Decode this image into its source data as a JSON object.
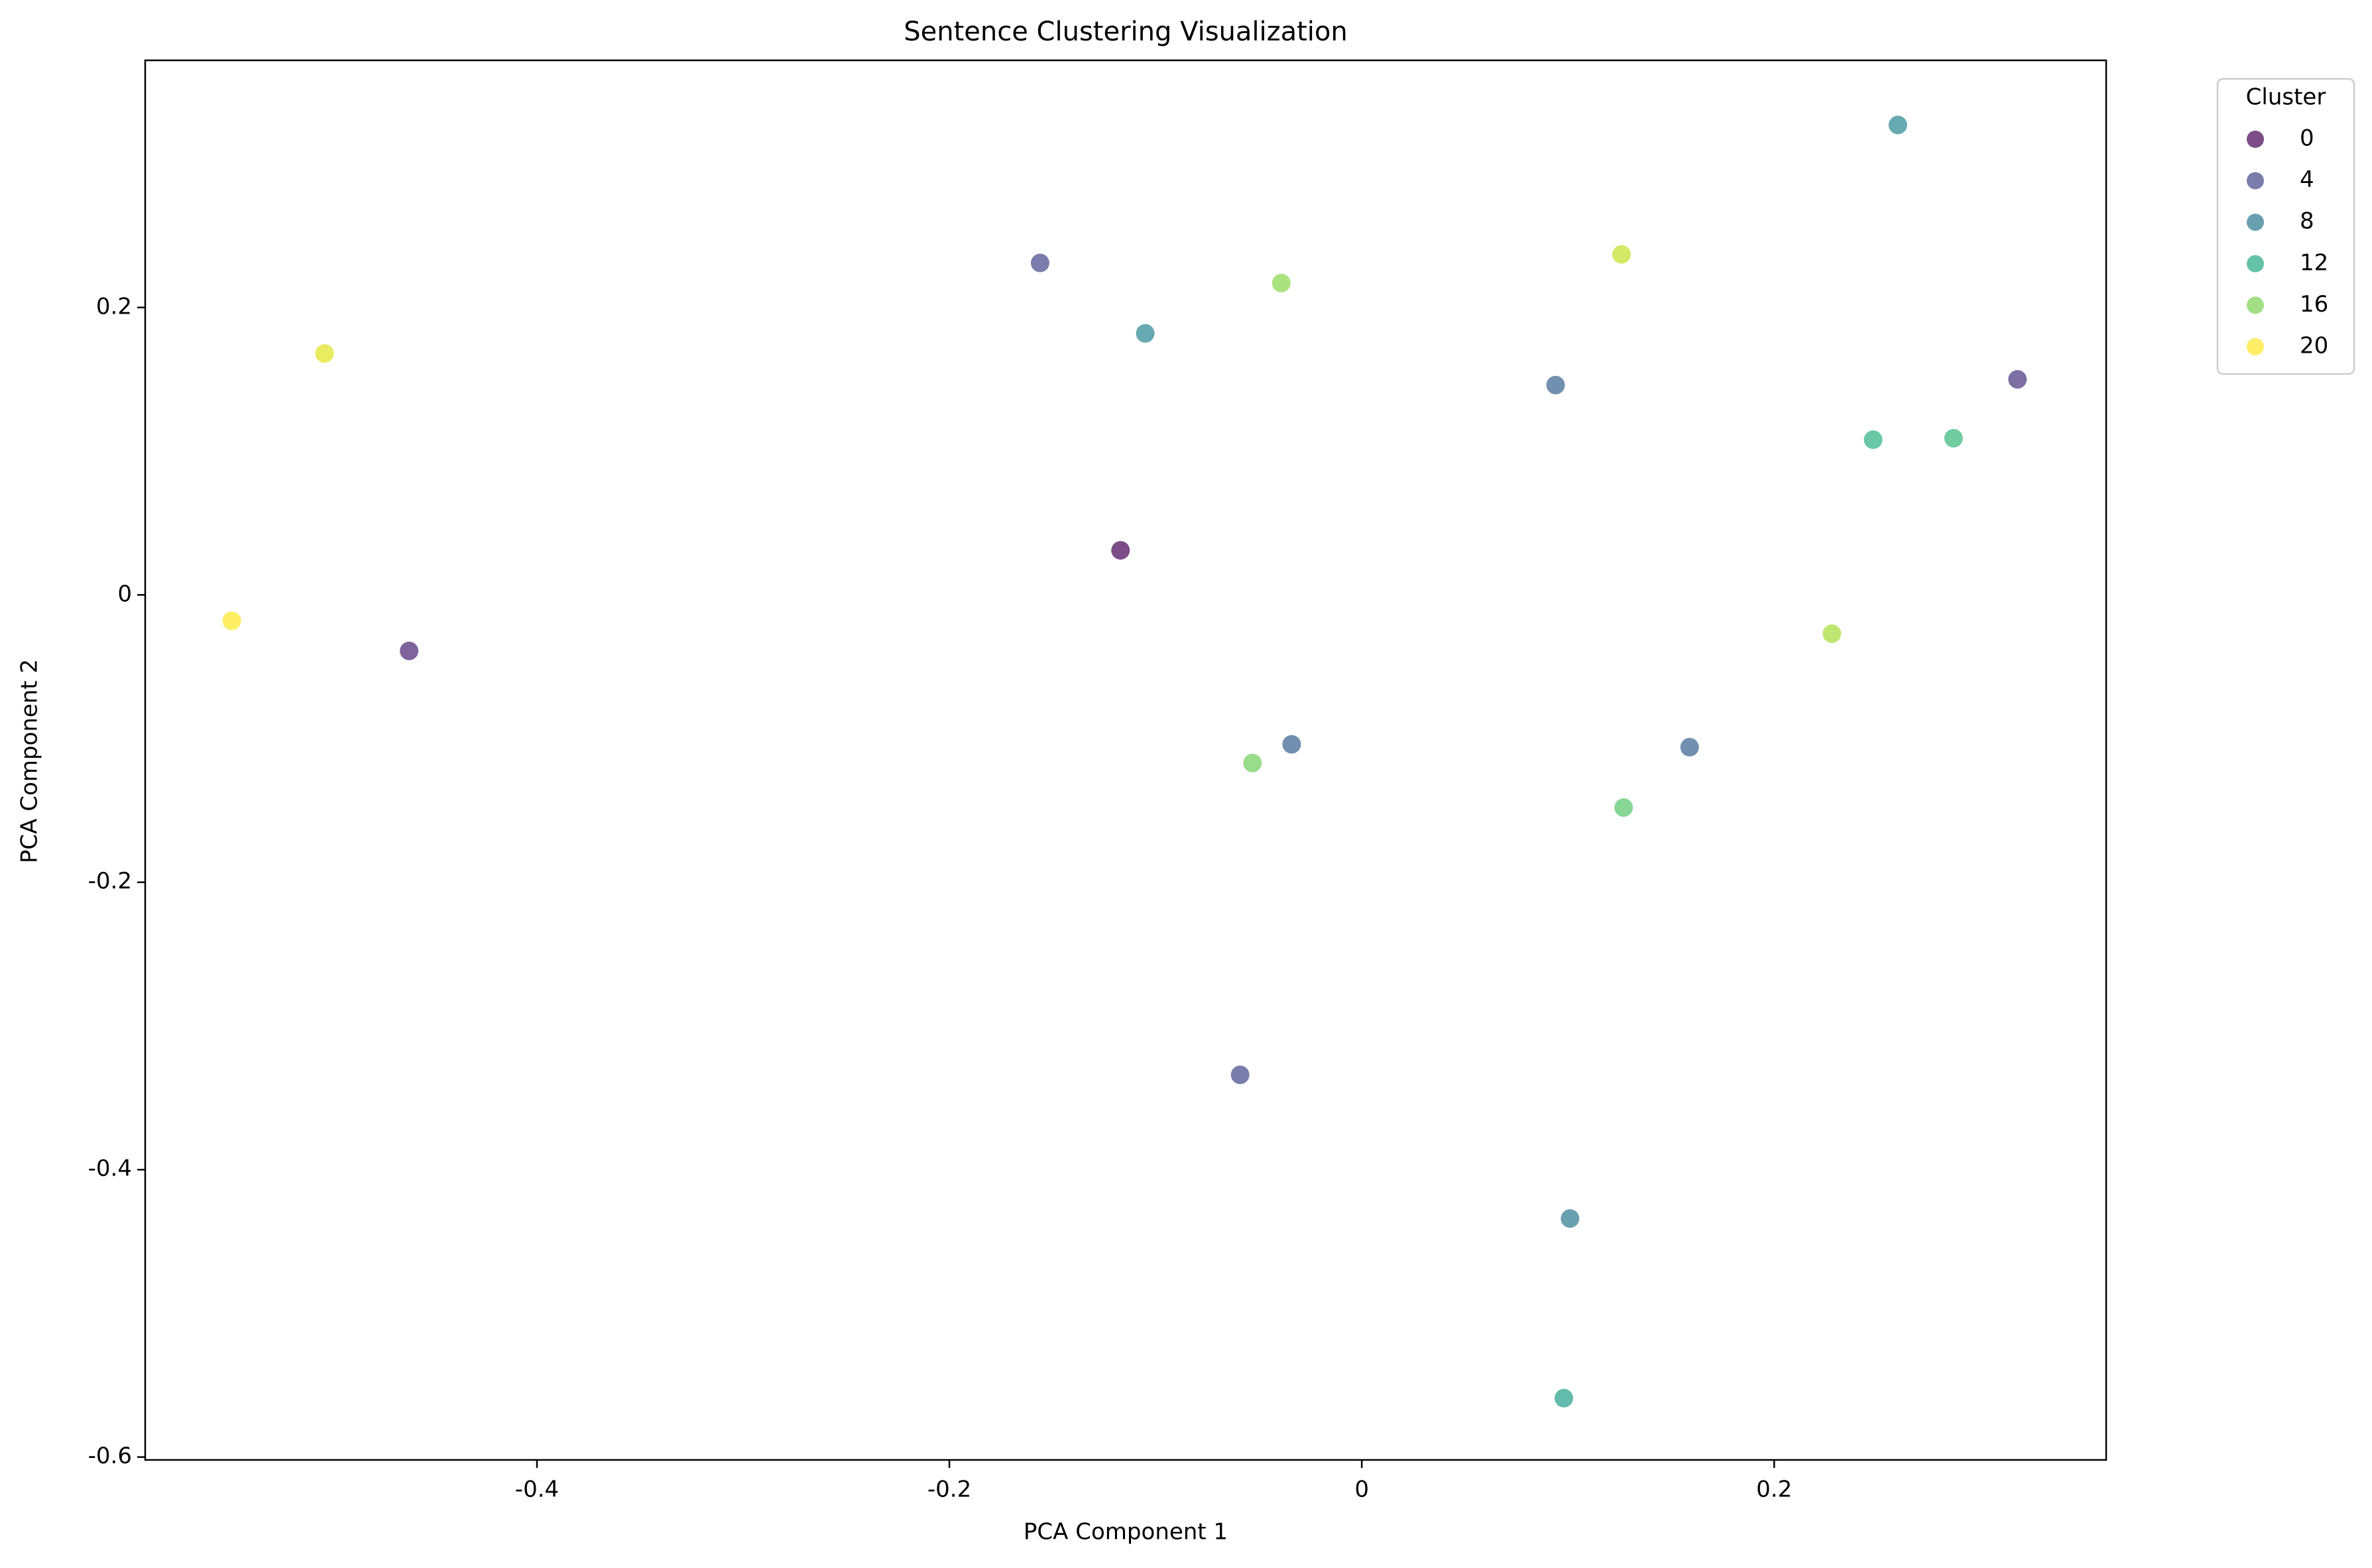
{
  "chart_data": {
    "type": "scatter",
    "title": "Sentence Clustering Visualization",
    "x_label": "PCA Component 1",
    "y_label": "PCA Component 2",
    "xlim": [
      -0.59,
      0.361
    ],
    "ylim": [
      -0.602,
      0.372
    ],
    "xticks": [
      -0.4,
      -0.2,
      0.0,
      0.2
    ],
    "yticks": [
      -0.6,
      -0.4,
      -0.2,
      0.0,
      0.2
    ],
    "grid": false,
    "alpha": 0.7,
    "x": [
      -0.548,
      -0.503,
      -0.462,
      -0.156,
      -0.117,
      -0.105,
      -0.039,
      -0.053,
      -0.034,
      -0.059,
      0.094,
      0.126,
      0.159,
      0.127,
      0.101,
      0.098,
      0.228,
      0.248,
      0.287,
      0.26,
      0.318
    ],
    "y": [
      -0.018,
      0.168,
      -0.039,
      0.231,
      0.031,
      0.182,
      0.217,
      -0.117,
      -0.104,
      -0.334,
      0.146,
      0.237,
      -0.106,
      -0.148,
      -0.434,
      -0.559,
      -0.027,
      0.108,
      0.109,
      0.327,
      0.15
    ],
    "colors": [
      "#fde725",
      "#e0e31d",
      "#482173",
      "#414487",
      "#440154",
      "#25858e",
      "#86d549",
      "#6ece58",
      "#355f8d",
      "#414487",
      "#355f8d",
      "#c2df23",
      "#355f8d",
      "#52c569",
      "#2a788e",
      "#1f9e89",
      "#a5db36",
      "#2ab07f",
      "#35b779",
      "#25858e",
      "#46327e"
    ],
    "legend": {
      "title": "Cluster",
      "position": "outside upper right",
      "items": [
        {
          "label": 0,
          "color": "#440154"
        },
        {
          "label": 4,
          "color": "#414487"
        },
        {
          "label": 8,
          "color": "#2a788e"
        },
        {
          "label": 12,
          "color": "#22a884"
        },
        {
          "label": 16,
          "color": "#7ad151"
        },
        {
          "label": 20,
          "color": "#fde725"
        }
      ]
    }
  }
}
